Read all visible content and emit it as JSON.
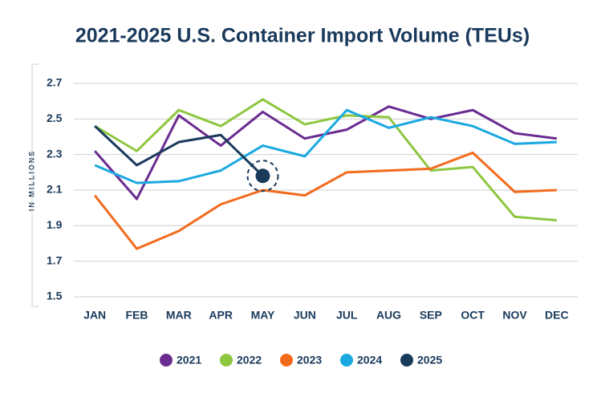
{
  "chart_data": {
    "type": "line",
    "title": "2021-2025 U.S. Container Import Volume (TEUs)",
    "y_label": "IN MILLIONS",
    "categories": [
      "JAN",
      "FEB",
      "MAR",
      "APR",
      "MAY",
      "JUN",
      "JUL",
      "AUG",
      "SEP",
      "OCT",
      "NOV",
      "DEC"
    ],
    "series": [
      {
        "name": "2021",
        "color": "#6a2c91",
        "values": [
          2.32,
          2.05,
          2.52,
          2.35,
          2.54,
          2.39,
          2.44,
          2.57,
          2.5,
          2.55,
          2.42,
          2.39
        ]
      },
      {
        "name": "2022",
        "color": "#8dc63f",
        "values": [
          2.46,
          2.32,
          2.55,
          2.46,
          2.61,
          2.47,
          2.52,
          2.51,
          2.21,
          2.23,
          1.95,
          1.93
        ]
      },
      {
        "name": "2023",
        "color": "#f26b1d",
        "values": [
          2.07,
          1.77,
          1.87,
          2.02,
          2.1,
          2.07,
          2.2,
          2.21,
          2.22,
          2.31,
          2.09,
          2.1
        ]
      },
      {
        "name": "2024",
        "color": "#1ba9e1",
        "values": [
          2.24,
          2.14,
          2.15,
          2.21,
          2.35,
          2.29,
          2.55,
          2.45,
          2.51,
          2.46,
          2.36,
          2.37
        ]
      },
      {
        "name": "2025",
        "color": "#1a3a5c",
        "values": [
          2.46,
          2.24,
          2.37,
          2.41,
          2.18,
          null,
          null,
          null,
          null,
          null,
          null,
          null
        ]
      }
    ],
    "ylim": [
      1.5,
      2.7
    ],
    "yticks": [
      1.5,
      1.7,
      1.9,
      2.1,
      2.3,
      2.5,
      2.7
    ],
    "grid": true
  }
}
